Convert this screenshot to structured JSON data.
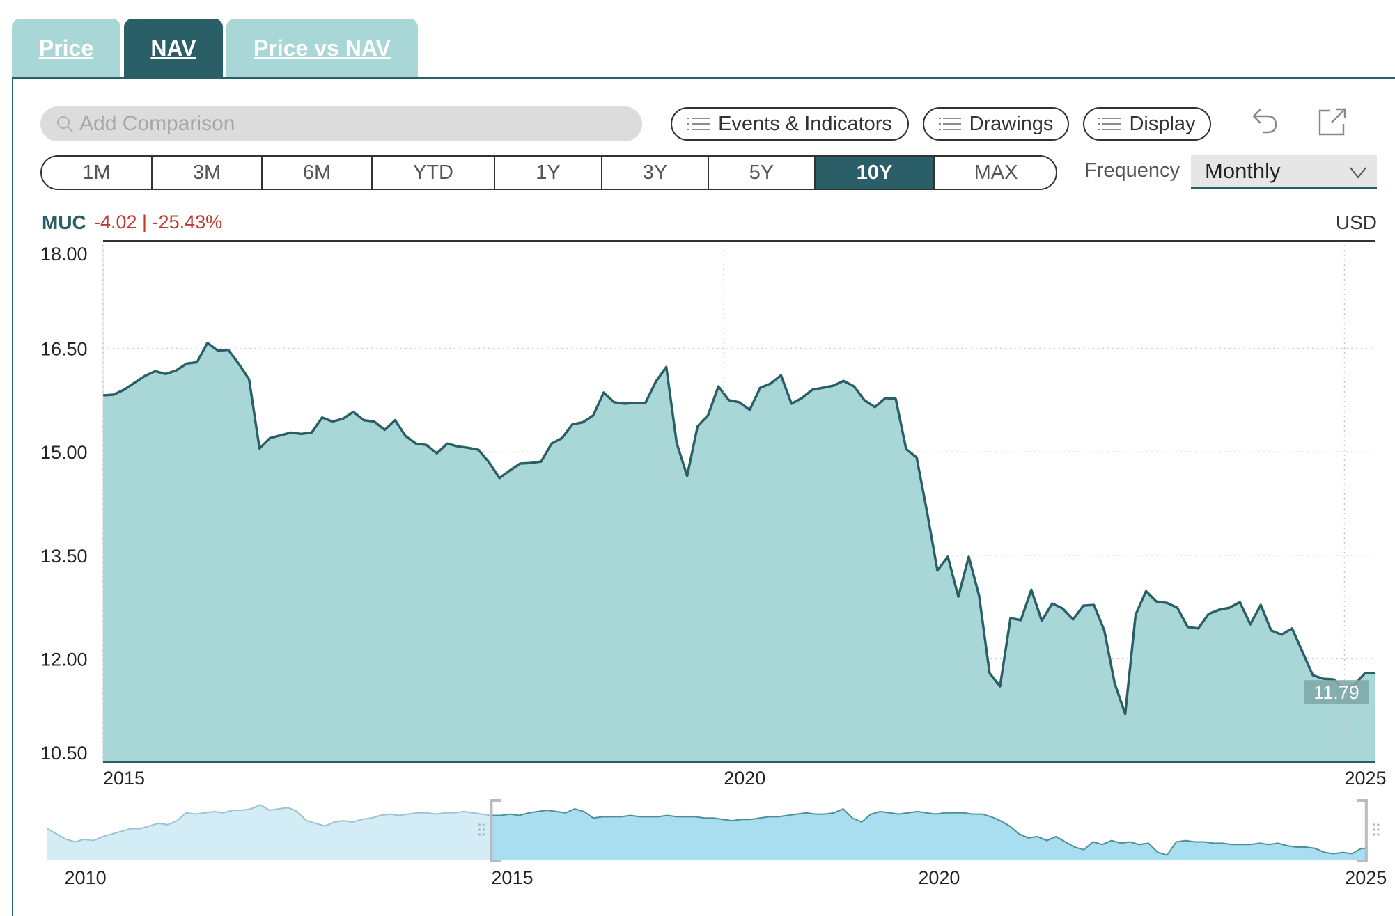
{
  "tabs": [
    {
      "label": "Price",
      "active": false
    },
    {
      "label": "NAV",
      "active": true
    },
    {
      "label": "Price vs NAV",
      "active": false
    }
  ],
  "toolbar": {
    "search_placeholder": "Add Comparison",
    "events_label": "Events & Indicators",
    "drawings_label": "Drawings",
    "display_label": "Display",
    "undo_icon": "undo-icon",
    "popout_icon": "external-link-icon"
  },
  "ranges": [
    "1M",
    "3M",
    "6M",
    "YTD",
    "1Y",
    "3Y",
    "5Y",
    "10Y",
    "MAX"
  ],
  "active_range": "10Y",
  "frequency": {
    "label": "Frequency",
    "value": "Monthly"
  },
  "header": {
    "ticker": "MUC",
    "change": "-4.02 | -25.43%",
    "currency": "USD"
  },
  "colors": {
    "accent": "#2a5f67",
    "area_fill": "#a9d6d6",
    "negative": "#c0392b",
    "nav_fill": "#a8def0"
  },
  "chart_data": {
    "type": "area",
    "series": [
      {
        "values": [
          15.82,
          15.83,
          15.9,
          16.0,
          16.1,
          16.17,
          16.13,
          16.18,
          16.28,
          16.3,
          16.58,
          16.47,
          16.48,
          16.28,
          16.05,
          15.05,
          15.2,
          15.24,
          15.28,
          15.26,
          15.28,
          15.5,
          15.44,
          15.48,
          15.58,
          15.46,
          15.44,
          15.32,
          15.46,
          15.23,
          15.12,
          15.1,
          14.98,
          15.12,
          15.08,
          15.06,
          15.03,
          14.85,
          14.62,
          14.73,
          14.83,
          14.84,
          14.86,
          15.12,
          15.2,
          15.4,
          15.43,
          15.53,
          15.86,
          15.72,
          15.7,
          15.71,
          15.71,
          16.02,
          16.23,
          15.13,
          14.65,
          15.37,
          15.53,
          15.95,
          15.75,
          15.72,
          15.61,
          15.93,
          15.99,
          16.11,
          15.7,
          15.78,
          15.9,
          15.93,
          15.96,
          16.03,
          15.95,
          15.75,
          15.65,
          15.78,
          15.77,
          15.04,
          14.92,
          14.13,
          13.28,
          13.48,
          12.9,
          13.48,
          12.91,
          11.79,
          11.6,
          12.59,
          12.56,
          13.0,
          12.55,
          12.8,
          12.73,
          12.57,
          12.77,
          12.78,
          12.41,
          11.64,
          11.2,
          12.64,
          12.98,
          12.83,
          12.81,
          12.74,
          12.46,
          12.44,
          12.65,
          12.71,
          12.74,
          12.82,
          12.5,
          12.78,
          12.41,
          12.35,
          12.44,
          12.1,
          11.76,
          11.71,
          11.7,
          11.56,
          11.63,
          11.79,
          11.79
        ]
      }
    ],
    "x_start": "2015-01",
    "x_end": "2025-04",
    "frequency": "monthly",
    "x_ticks": [
      "2015",
      "2020",
      "2025"
    ],
    "y_ticks": [
      "18.00",
      "16.50",
      "15.00",
      "13.50",
      "12.00",
      "10.50"
    ],
    "ylim": [
      10.5,
      18.0
    ],
    "last_value_label": "11.79",
    "grid": true,
    "navigator": {
      "x_ticks": [
        "2010",
        "2015",
        "2020",
        "2025"
      ],
      "values": [
        13.0,
        12.8,
        12.6,
        12.5,
        12.6,
        12.55,
        12.7,
        12.8,
        12.9,
        13.0,
        13.0,
        13.1,
        13.2,
        13.15,
        13.3,
        13.6,
        13.55,
        13.6,
        13.65,
        13.6,
        13.7,
        13.7,
        13.75,
        13.9,
        13.7,
        13.75,
        13.8,
        13.65,
        13.3,
        13.2,
        13.1,
        13.25,
        13.3,
        13.25,
        13.35,
        13.4,
        13.5,
        13.55,
        13.5,
        13.55,
        13.6,
        13.6,
        13.55,
        13.6,
        13.6,
        13.65,
        13.6,
        13.55,
        13.5,
        13.5,
        13.55,
        13.5,
        13.6,
        13.65,
        13.7,
        13.65,
        13.6,
        13.75,
        13.65,
        13.4,
        13.45,
        13.45,
        13.45,
        13.5,
        13.45,
        13.45,
        13.45,
        13.5,
        13.45,
        13.45,
        13.45,
        13.4,
        13.4,
        13.35,
        13.3,
        13.35,
        13.35,
        13.4,
        13.45,
        13.45,
        13.5,
        13.55,
        13.6,
        13.55,
        13.55,
        13.6,
        13.75,
        13.4,
        13.25,
        13.55,
        13.65,
        13.6,
        13.55,
        13.6,
        13.65,
        13.6,
        13.55,
        13.6,
        13.6,
        13.6,
        13.55,
        13.55,
        13.45,
        13.3,
        13.1,
        12.8,
        12.65,
        12.7,
        12.55,
        12.7,
        12.5,
        12.3,
        12.2,
        12.5,
        12.4,
        12.55,
        12.45,
        12.5,
        12.4,
        12.45,
        12.1,
        12.0,
        12.5,
        12.55,
        12.5,
        12.5,
        12.45,
        12.45,
        12.4,
        12.4,
        12.4,
        12.45,
        12.4,
        12.45,
        12.35,
        12.3,
        12.3,
        12.25,
        12.1,
        12.05,
        12.1,
        12.05,
        12.25,
        12.25
      ]
    }
  }
}
